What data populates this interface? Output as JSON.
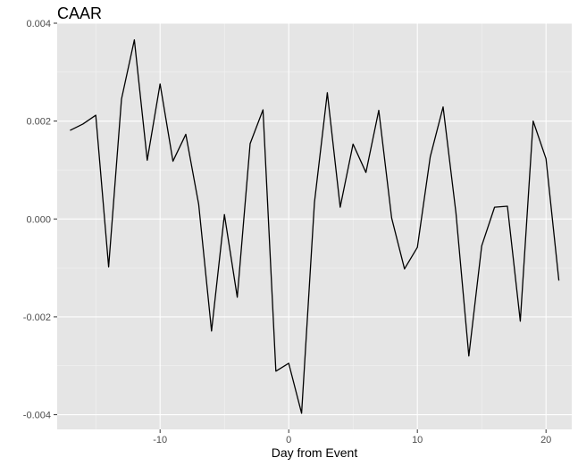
{
  "chart_data": {
    "type": "line",
    "title": "CAAR",
    "xlabel": "Day from Event",
    "ylabel": "",
    "xlim": [
      -18,
      22
    ],
    "ylim": [
      -0.0043,
      0.004
    ],
    "xticks": [
      -10,
      0,
      10,
      20
    ],
    "xtick_labels": [
      "-10",
      "0",
      "10",
      "20"
    ],
    "yticks": [
      -0.004,
      -0.002,
      0.0,
      0.002,
      0.004
    ],
    "ytick_labels": [
      "-0.004",
      "-0.002",
      "0.000",
      "0.002",
      "0.004"
    ],
    "grid": true,
    "legend": "none",
    "colors": {
      "panel": "#e5e5e5",
      "grid_major": "#ffffff",
      "line": "#000000",
      "tick": "#333333"
    },
    "series": [
      {
        "x": [
          -17,
          -16,
          -15,
          -14,
          -13,
          -12,
          -11,
          -10,
          -9,
          -8,
          -7,
          -6,
          -5,
          -4,
          -3,
          -2,
          -1,
          0,
          1,
          2,
          3,
          4,
          5,
          6,
          7,
          8,
          9,
          10,
          11,
          12,
          13,
          14,
          15,
          16,
          17,
          18,
          19,
          20,
          21
        ],
        "y": [
          0.00181,
          0.00194,
          0.00212,
          -0.00098,
          0.00245,
          0.00366,
          0.0012,
          0.00276,
          0.00118,
          0.00173,
          0.0003,
          -0.00229,
          9e-05,
          -0.0016,
          0.00154,
          0.00223,
          -0.00311,
          -0.00295,
          -0.00397,
          0.00034,
          0.00258,
          0.00024,
          0.00153,
          0.00095,
          0.00222,
          2e-05,
          -0.00102,
          -0.00058,
          0.00127,
          0.00229,
          0.00012,
          -0.0028,
          -0.00055,
          0.00024,
          0.00026,
          -0.00209,
          0.002,
          0.00123,
          -0.00126
        ]
      }
    ]
  }
}
